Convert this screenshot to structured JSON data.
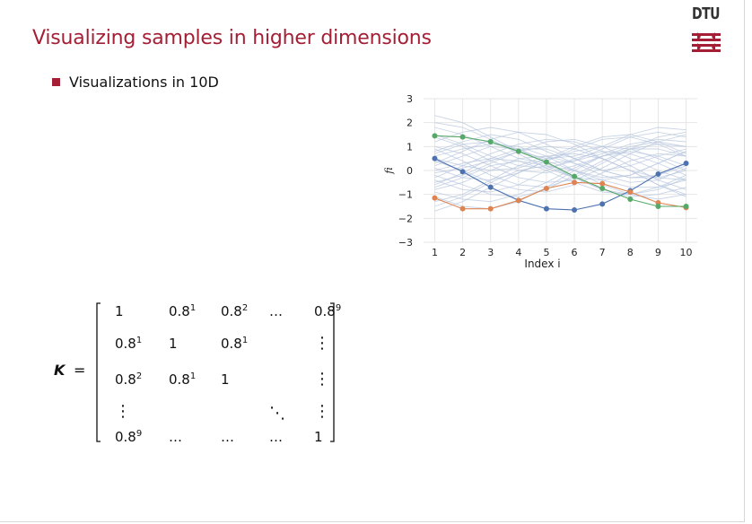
{
  "slide": {
    "title": "Visualizing samples in higher dimensions",
    "logo_text": "DTU",
    "bullet": "Visualizations in 10D"
  },
  "colors": {
    "title": "#a41f35",
    "bullet": "#a41f35",
    "series_blue": "#4c72b0",
    "series_orange": "#dd8452",
    "series_green": "#55a868",
    "background_samples": "#b7c5de"
  },
  "chart_data": {
    "type": "line",
    "x": [
      1,
      2,
      3,
      4,
      5,
      6,
      7,
      8,
      9,
      10
    ],
    "xlabel": "Index i",
    "ylabel": "fi",
    "xticks": [
      "1",
      "2",
      "3",
      "4",
      "5",
      "6",
      "7",
      "8",
      "9",
      "10"
    ],
    "yticks": [
      "3",
      "2",
      "1",
      "0",
      "−1",
      "−2",
      "−3"
    ],
    "ylim": [
      -3,
      3
    ],
    "xlim": [
      0.6,
      10.4
    ],
    "grid": true,
    "series": [
      {
        "color": "blue",
        "values": [
          0.5,
          -0.05,
          -0.7,
          -1.25,
          -1.6,
          -1.65,
          -1.4,
          -0.85,
          -0.15,
          0.3
        ]
      },
      {
        "color": "orange",
        "values": [
          -1.15,
          -1.6,
          -1.6,
          -1.25,
          -0.75,
          -0.5,
          -0.55,
          -0.9,
          -1.35,
          -1.55
        ]
      },
      {
        "color": "green",
        "values": [
          1.45,
          1.4,
          1.2,
          0.8,
          0.35,
          -0.25,
          -0.75,
          -1.2,
          -1.5,
          -1.5
        ]
      }
    ],
    "background_samples": [
      [
        0.2,
        0.6,
        1.0,
        0.9,
        0.4,
        0.0,
        -0.3,
        -0.2,
        0.3,
        0.8
      ],
      [
        -0.5,
        -0.2,
        0.3,
        0.8,
        1.2,
        1.3,
        1.0,
        0.5,
        0.0,
        -0.4
      ],
      [
        1.0,
        0.7,
        0.2,
        -0.3,
        -0.5,
        -0.4,
        0.1,
        0.7,
        1.2,
        1.5
      ],
      [
        -1.3,
        -1.0,
        -0.4,
        0.2,
        0.6,
        0.7,
        0.5,
        0.0,
        -0.6,
        -1.0
      ],
      [
        0.8,
        1.2,
        1.5,
        1.3,
        0.8,
        0.3,
        0.0,
        0.2,
        0.6,
        0.9
      ],
      [
        -0.2,
        -0.6,
        -1.0,
        -1.1,
        -0.8,
        -0.2,
        0.4,
        0.9,
        1.1,
        1.0
      ],
      [
        2.3,
        2.0,
        1.4,
        0.8,
        0.5,
        0.6,
        1.0,
        1.5,
        1.8,
        1.7
      ],
      [
        0.0,
        0.3,
        0.5,
        0.4,
        0.0,
        -0.5,
        -0.9,
        -1.0,
        -0.7,
        -0.2
      ],
      [
        -0.8,
        -0.5,
        0.0,
        0.5,
        0.6,
        0.3,
        -0.2,
        -0.5,
        -0.4,
        0.1
      ],
      [
        1.5,
        1.1,
        0.6,
        0.2,
        0.1,
        0.4,
        0.9,
        1.4,
        1.6,
        1.4
      ],
      [
        0.4,
        0.0,
        -0.5,
        -0.8,
        -0.9,
        -0.6,
        -0.1,
        0.4,
        0.7,
        0.6
      ],
      [
        -1.7,
        -1.3,
        -0.7,
        -0.1,
        0.4,
        0.8,
        1.0,
        0.9,
        0.5,
        0.0
      ],
      [
        0.6,
        0.9,
        1.1,
        1.0,
        0.6,
        0.0,
        -0.6,
        -1.0,
        -1.2,
        -1.0
      ],
      [
        -0.3,
        0.2,
        0.7,
        1.1,
        1.3,
        1.2,
        0.8,
        0.2,
        -0.4,
        -0.8
      ],
      [
        1.2,
        1.6,
        1.8,
        1.6,
        1.1,
        0.5,
        0.0,
        -0.3,
        -0.3,
        0.0
      ],
      [
        -0.9,
        -1.2,
        -1.3,
        -1.0,
        -0.5,
        0.1,
        0.6,
        0.8,
        0.6,
        0.2
      ],
      [
        0.1,
        -0.3,
        -0.4,
        -0.1,
        0.4,
        0.9,
        1.3,
        1.4,
        1.1,
        0.6
      ],
      [
        2.0,
        1.8,
        1.3,
        0.7,
        0.1,
        -0.3,
        -0.4,
        -0.2,
        0.3,
        0.8
      ],
      [
        -0.6,
        -0.1,
        0.5,
        0.9,
        0.9,
        0.5,
        0.0,
        -0.3,
        -0.2,
        0.2
      ],
      [
        0.9,
        0.4,
        -0.2,
        -0.6,
        -0.7,
        -0.3,
        0.3,
        0.9,
        1.4,
        1.6
      ],
      [
        -1.1,
        -1.5,
        -1.6,
        -1.3,
        -0.7,
        0.0,
        0.6,
        1.0,
        1.2,
        1.0
      ],
      [
        0.3,
        0.8,
        1.3,
        1.6,
        1.5,
        1.1,
        0.5,
        0.0,
        -0.3,
        -0.4
      ],
      [
        1.4,
        1.0,
        0.4,
        0.0,
        -0.1,
        0.2,
        0.6,
        0.9,
        0.9,
        0.6
      ],
      [
        -0.4,
        -0.8,
        -0.9,
        -0.6,
        0.0,
        0.5,
        0.8,
        0.7,
        0.3,
        -0.2
      ],
      [
        0.7,
        1.1,
        1.2,
        0.9,
        0.3,
        -0.3,
        -0.8,
        -1.1,
        -1.0,
        -0.7
      ],
      [
        -0.1,
        0.1,
        0.4,
        0.8,
        1.0,
        0.9,
        0.5,
        0.0,
        -0.6,
        -1.1
      ],
      [
        1.8,
        1.5,
        1.0,
        0.5,
        0.3,
        0.4,
        0.7,
        1.1,
        1.3,
        1.2
      ],
      [
        -1.5,
        -1.1,
        -0.5,
        0.0,
        0.2,
        0.0,
        -0.4,
        -0.7,
        -0.7,
        -0.4
      ],
      [
        0.5,
        0.2,
        0.0,
        0.1,
        0.5,
        1.0,
        1.4,
        1.5,
        1.2,
        0.7
      ],
      [
        -0.7,
        -0.3,
        0.2,
        0.4,
        0.2,
        -0.3,
        -0.8,
        -1.0,
        -0.8,
        -0.3
      ]
    ]
  },
  "matrix": {
    "label": "K",
    "equals": "=",
    "rows": [
      [
        [
          "1",
          ""
        ],
        [
          "0.8",
          "1"
        ],
        [
          "0.8",
          "2"
        ],
        [
          "…",
          ""
        ],
        [
          "0.8",
          "9"
        ]
      ],
      [
        [
          "0.8",
          "1"
        ],
        [
          "1",
          ""
        ],
        [
          "0.8",
          "1"
        ],
        [
          "",
          ""
        ],
        [
          "⋮",
          ""
        ]
      ],
      [
        [
          "0.8",
          "2"
        ],
        [
          "0.8",
          "1"
        ],
        [
          "1",
          ""
        ],
        [
          "",
          ""
        ],
        [
          "⋮",
          ""
        ]
      ],
      [
        [
          "⋮",
          ""
        ],
        [
          "",
          ""
        ],
        [
          "",
          ""
        ],
        [
          "⋱",
          ""
        ],
        [
          "⋮",
          ""
        ]
      ],
      [
        [
          "0.8",
          "9"
        ],
        [
          "…",
          ""
        ],
        [
          "…",
          ""
        ],
        [
          "…",
          ""
        ],
        [
          "1",
          ""
        ]
      ]
    ]
  }
}
